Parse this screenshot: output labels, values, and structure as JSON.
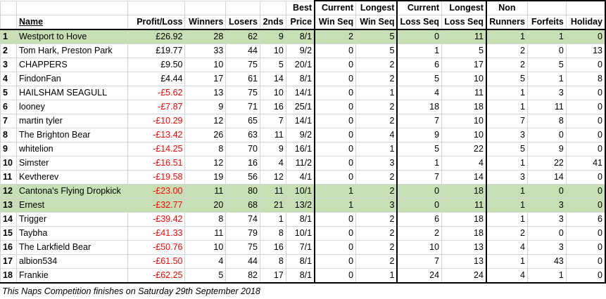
{
  "headers": {
    "row1": [
      "",
      "",
      "",
      "",
      "",
      "",
      "Best",
      "Current",
      "Longest",
      "Current",
      "Longest",
      "Non",
      "",
      ""
    ],
    "row2": [
      "",
      "Name",
      "Profit/Loss",
      "Winners",
      "Losers",
      "2nds",
      "Price",
      "Win Seq",
      "Win Seq",
      "Loss Seq",
      "Loss Seq",
      "Runners",
      "Forfeits",
      "Holiday"
    ]
  },
  "rows": [
    {
      "rank": "1",
      "name": "Westport to Hove",
      "pl": "£26.92",
      "winners": "28",
      "losers": "62",
      "seconds": "9",
      "best": "8/1",
      "cws": "2",
      "lws": "5",
      "cls": "0",
      "lls": "11",
      "nr": "1",
      "forfeits": "1",
      "holiday": "0",
      "highlight": true,
      "neg": false
    },
    {
      "rank": "2",
      "name": "Tom Hark, Preston Park",
      "pl": "£19.77",
      "winners": "33",
      "losers": "44",
      "seconds": "10",
      "best": "9/2",
      "cws": "0",
      "lws": "5",
      "cls": "1",
      "lls": "5",
      "nr": "2",
      "forfeits": "0",
      "holiday": "13",
      "highlight": false,
      "neg": false
    },
    {
      "rank": "3",
      "name": "CHAPPERS",
      "pl": "£9.50",
      "winners": "10",
      "losers": "75",
      "seconds": "5",
      "best": "20/1",
      "cws": "0",
      "lws": "2",
      "cls": "6",
      "lls": "17",
      "nr": "2",
      "forfeits": "5",
      "holiday": "0",
      "highlight": false,
      "neg": false
    },
    {
      "rank": "4",
      "name": "FindonFan",
      "pl": "£4.44",
      "winners": "17",
      "losers": "61",
      "seconds": "14",
      "best": "8/1",
      "cws": "0",
      "lws": "2",
      "cls": "5",
      "lls": "10",
      "nr": "5",
      "forfeits": "1",
      "holiday": "8",
      "highlight": false,
      "neg": false
    },
    {
      "rank": "5",
      "name": "HAILSHAM SEAGULL",
      "pl": "-£5.62",
      "winners": "13",
      "losers": "75",
      "seconds": "10",
      "best": "14/1",
      "cws": "0",
      "lws": "1",
      "cls": "4",
      "lls": "11",
      "nr": "1",
      "forfeits": "3",
      "holiday": "0",
      "highlight": false,
      "neg": true
    },
    {
      "rank": "6",
      "name": "looney",
      "pl": "-£7.87",
      "winners": "9",
      "losers": "71",
      "seconds": "16",
      "best": "25/1",
      "cws": "0",
      "lws": "2",
      "cls": "18",
      "lls": "18",
      "nr": "1",
      "forfeits": "11",
      "holiday": "0",
      "highlight": false,
      "neg": true
    },
    {
      "rank": "7",
      "name": "martin tyler",
      "pl": "-£10.29",
      "winners": "12",
      "losers": "65",
      "seconds": "7",
      "best": "14/1",
      "cws": "0",
      "lws": "2",
      "cls": "7",
      "lls": "10",
      "nr": "7",
      "forfeits": "8",
      "holiday": "0",
      "highlight": false,
      "neg": true
    },
    {
      "rank": "8",
      "name": "The Brighton Bear",
      "pl": "-£13.42",
      "winners": "26",
      "losers": "63",
      "seconds": "11",
      "best": "9/2",
      "cws": "0",
      "lws": "4",
      "cls": "9",
      "lls": "10",
      "nr": "3",
      "forfeits": "0",
      "holiday": "0",
      "highlight": false,
      "neg": true
    },
    {
      "rank": "9",
      "name": "whitelion",
      "pl": "-£14.25",
      "winners": "8",
      "losers": "70",
      "seconds": "9",
      "best": "16/1",
      "cws": "0",
      "lws": "1",
      "cls": "5",
      "lls": "22",
      "nr": "5",
      "forfeits": "9",
      "holiday": "0",
      "highlight": false,
      "neg": true
    },
    {
      "rank": "10",
      "name": "Simster",
      "pl": "-£16.51",
      "winners": "12",
      "losers": "16",
      "seconds": "4",
      "best": "11/2",
      "cws": "0",
      "lws": "3",
      "cls": "1",
      "lls": "4",
      "nr": "1",
      "forfeits": "22",
      "holiday": "41",
      "highlight": false,
      "neg": true
    },
    {
      "rank": "11",
      "name": "Kevtherev",
      "pl": "-£19.58",
      "winners": "19",
      "losers": "56",
      "seconds": "12",
      "best": "4/1",
      "cws": "0",
      "lws": "2",
      "cls": "7",
      "lls": "14",
      "nr": "3",
      "forfeits": "14",
      "holiday": "0",
      "highlight": false,
      "neg": true
    },
    {
      "rank": "12",
      "name": "Cantona's Flying Dropkick",
      "pl": "-£23.00",
      "winners": "11",
      "losers": "80",
      "seconds": "11",
      "best": "10/1",
      "cws": "1",
      "lws": "2",
      "cls": "0",
      "lls": "18",
      "nr": "1",
      "forfeits": "0",
      "holiday": "0",
      "highlight": true,
      "neg": true
    },
    {
      "rank": "13",
      "name": "Ernest",
      "pl": "-£32.77",
      "winners": "20",
      "losers": "68",
      "seconds": "21",
      "best": "13/2",
      "cws": "1",
      "lws": "3",
      "cls": "0",
      "lls": "11",
      "nr": "1",
      "forfeits": "3",
      "holiday": "0",
      "highlight": true,
      "neg": true
    },
    {
      "rank": "14",
      "name": "Trigger",
      "pl": "-£39.42",
      "winners": "8",
      "losers": "74",
      "seconds": "1",
      "best": "8/1",
      "cws": "0",
      "lws": "2",
      "cls": "6",
      "lls": "18",
      "nr": "1",
      "forfeits": "3",
      "holiday": "6",
      "highlight": false,
      "neg": true
    },
    {
      "rank": "15",
      "name": "Taybha",
      "pl": "-£41.33",
      "winners": "11",
      "losers": "79",
      "seconds": "8",
      "best": "10/1",
      "cws": "0",
      "lws": "2",
      "cls": "2",
      "lls": "18",
      "nr": "2",
      "forfeits": "0",
      "holiday": "0",
      "highlight": false,
      "neg": true
    },
    {
      "rank": "16",
      "name": "The Larkfield Bear",
      "pl": "-£50.76",
      "winners": "10",
      "losers": "75",
      "seconds": "16",
      "best": "7/1",
      "cws": "0",
      "lws": "2",
      "cls": "10",
      "lls": "13",
      "nr": "4",
      "forfeits": "3",
      "holiday": "0",
      "highlight": false,
      "neg": true
    },
    {
      "rank": "17",
      "name": "albion534",
      "pl": "-£61.50",
      "winners": "4",
      "losers": "44",
      "seconds": "8",
      "best": "8/1",
      "cws": "0",
      "lws": "2",
      "cls": "7",
      "lls": "13",
      "nr": "1",
      "forfeits": "43",
      "holiday": "0",
      "highlight": false,
      "neg": true
    },
    {
      "rank": "18",
      "name": "Frankie",
      "pl": "-£62.25",
      "winners": "5",
      "losers": "82",
      "seconds": "17",
      "best": "8/1",
      "cws": "0",
      "lws": "1",
      "cls": "24",
      "lls": "24",
      "nr": "4",
      "forfeits": "1",
      "holiday": "0",
      "highlight": false,
      "neg": true
    }
  ],
  "footer": "This Naps Competition finishes on Saturday 29th September 2018",
  "colors": {
    "highlight": "#c6e0b4",
    "negative": "#ff0000"
  }
}
